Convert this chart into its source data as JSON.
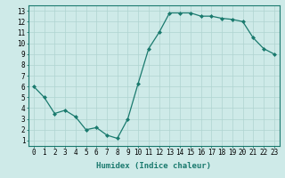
{
  "x": [
    0,
    1,
    2,
    3,
    4,
    5,
    6,
    7,
    8,
    9,
    10,
    11,
    12,
    13,
    14,
    15,
    16,
    17,
    18,
    19,
    20,
    21,
    22,
    23
  ],
  "y": [
    6.0,
    5.0,
    3.5,
    3.8,
    3.2,
    2.0,
    2.2,
    1.5,
    1.2,
    3.0,
    6.3,
    9.5,
    11.0,
    12.8,
    12.8,
    12.8,
    12.5,
    12.5,
    12.3,
    12.2,
    12.0,
    10.5,
    9.5,
    9.0
  ],
  "line_color": "#1a7a6e",
  "marker": "D",
  "marker_size": 2.0,
  "bg_color": "#ceeae8",
  "grid_color": "#afd4d0",
  "xlabel": "Humidex (Indice chaleur)",
  "xlim": [
    -0.5,
    23.5
  ],
  "ylim": [
    0.5,
    13.5
  ],
  "xticks": [
    0,
    1,
    2,
    3,
    4,
    5,
    6,
    7,
    8,
    9,
    10,
    11,
    12,
    13,
    14,
    15,
    16,
    17,
    18,
    19,
    20,
    21,
    22,
    23
  ],
  "yticks": [
    1,
    2,
    3,
    4,
    5,
    6,
    7,
    8,
    9,
    10,
    11,
    12,
    13
  ],
  "xtick_labels": [
    "0",
    "1",
    "2",
    "3",
    "4",
    "5",
    "6",
    "7",
    "8",
    "9",
    "10",
    "11",
    "12",
    "13",
    "14",
    "15",
    "16",
    "17",
    "18",
    "19",
    "20",
    "21",
    "22",
    "23"
  ],
  "ytick_labels": [
    "1",
    "2",
    "3",
    "4",
    "5",
    "6",
    "7",
    "8",
    "9",
    "10",
    "11",
    "12",
    "13"
  ],
  "tick_fontsize": 5.5,
  "xlabel_fontsize": 6.5,
  "spine_color": "#1a7a6e"
}
